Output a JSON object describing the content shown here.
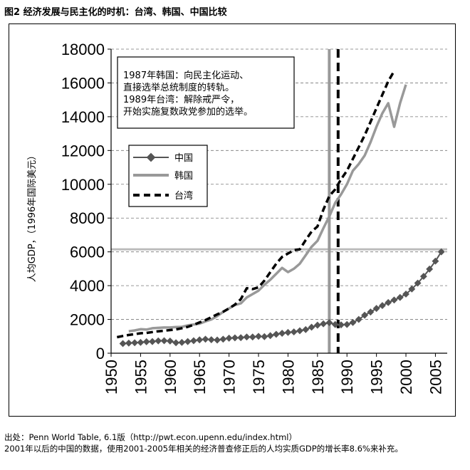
{
  "figure": {
    "title": "图2 经济发展与民主化的时机：台湾、韩国、中国比较"
  },
  "source": {
    "line1": "出处：Penn World Table, 6.1版（http://pwt.econ.upenn.edu/index.html）",
    "line2": "2001年以后的中国的数据，使用2001-2005年相关的经济普查修正后的人均实质GDP的增长率8.6%来补充。"
  },
  "chart_data": {
    "type": "line",
    "title": "",
    "xlabel": "",
    "ylabel": "人均GDP，（1996年国际美元）",
    "xlim": [
      1950,
      2007
    ],
    "ylim": [
      0,
      18000
    ],
    "x_ticks": [
      1950,
      1955,
      1960,
      1965,
      1970,
      1975,
      1980,
      1985,
      1990,
      1995,
      2000,
      2005
    ],
    "y_ticks": [
      0,
      2000,
      4000,
      6000,
      8000,
      10000,
      12000,
      14000,
      16000,
      18000
    ],
    "grid": "horizontal dashed",
    "legend_position": "left-middle",
    "colors": {
      "china": "#555555",
      "korea": "#999999",
      "taiwan": "#000000",
      "threshold": "#bbbbbb"
    },
    "series": [
      {
        "name": "中国",
        "key": "china",
        "x": [
          1952,
          1953,
          1954,
          1955,
          1956,
          1957,
          1958,
          1959,
          1960,
          1961,
          1962,
          1963,
          1964,
          1965,
          1966,
          1967,
          1968,
          1969,
          1970,
          1971,
          1972,
          1973,
          1974,
          1975,
          1976,
          1977,
          1978,
          1979,
          1980,
          1981,
          1982,
          1983,
          1984,
          1985,
          1986,
          1987,
          1988,
          1989,
          1990,
          1991,
          1992,
          1993,
          1994,
          1995,
          1996,
          1997,
          1998,
          1999,
          2000,
          2001,
          2002,
          2003,
          2004,
          2005,
          2006
        ],
        "values": [
          570,
          600,
          620,
          640,
          680,
          690,
          730,
          740,
          720,
          620,
          640,
          690,
          740,
          790,
          830,
          800,
          780,
          830,
          890,
          910,
          920,
          960,
          960,
          1000,
          980,
          1040,
          1120,
          1180,
          1230,
          1260,
          1330,
          1400,
          1540,
          1660,
          1740,
          1810,
          1700,
          1680,
          1700,
          1820,
          2000,
          2250,
          2440,
          2650,
          2820,
          3000,
          3150,
          3300,
          3500,
          3800,
          4150,
          4550,
          4980,
          5450,
          6000
        ]
      },
      {
        "name": "韩国",
        "key": "korea",
        "x": [
          1953,
          1954,
          1955,
          1956,
          1957,
          1958,
          1959,
          1960,
          1961,
          1962,
          1963,
          1964,
          1965,
          1966,
          1967,
          1968,
          1969,
          1970,
          1971,
          1972,
          1973,
          1974,
          1975,
          1976,
          1977,
          1978,
          1979,
          1980,
          1981,
          1982,
          1983,
          1984,
          1985,
          1986,
          1987,
          1988,
          1989,
          1990,
          1991,
          1992,
          1993,
          1994,
          1995,
          1996,
          1997,
          1998,
          1999,
          2000
        ],
        "values": [
          1300,
          1350,
          1420,
          1400,
          1480,
          1500,
          1520,
          1520,
          1550,
          1560,
          1650,
          1700,
          1750,
          1880,
          2000,
          2200,
          2450,
          2650,
          2850,
          2950,
          3300,
          3500,
          3700,
          4050,
          4350,
          4700,
          5050,
          4800,
          5000,
          5300,
          5800,
          6300,
          6650,
          7400,
          8100,
          8900,
          9400,
          10000,
          10800,
          11200,
          11700,
          12500,
          13400,
          14200,
          14800,
          13400,
          14800,
          15900
        ]
      },
      {
        "name": "台湾",
        "key": "taiwan",
        "x": [
          1951,
          1952,
          1953,
          1954,
          1955,
          1956,
          1957,
          1958,
          1959,
          1960,
          1961,
          1962,
          1963,
          1964,
          1965,
          1966,
          1967,
          1968,
          1969,
          1970,
          1971,
          1972,
          1973,
          1974,
          1975,
          1976,
          1977,
          1978,
          1979,
          1980,
          1981,
          1982,
          1983,
          1984,
          1985,
          1986,
          1987,
          1988,
          1989,
          1990,
          1991,
          1992,
          1993,
          1994,
          1995,
          1996,
          1997,
          1998
        ],
        "values": [
          950,
          1020,
          1080,
          1130,
          1180,
          1200,
          1250,
          1300,
          1330,
          1370,
          1410,
          1480,
          1560,
          1680,
          1820,
          1960,
          2130,
          2300,
          2450,
          2650,
          2880,
          3200,
          3850,
          3800,
          3900,
          4300,
          4800,
          5300,
          5700,
          5900,
          6100,
          6150,
          6700,
          7200,
          7500,
          8500,
          9300,
          9700,
          10300,
          10800,
          11500,
          12200,
          12900,
          13700,
          14500,
          15300,
          16100,
          16700
        ]
      }
    ],
    "vlines": [
      {
        "key": "korea",
        "x": 1987,
        "color": "#999999",
        "style": "solid"
      },
      {
        "key": "taiwan",
        "x": 1988.5,
        "color": "#000000",
        "style": "dashed"
      }
    ],
    "hline": {
      "y": 6150,
      "color": "#bbbbbb"
    },
    "annotation": {
      "lines": [
        "1987年韩国：向民主化运动、",
        "直接选举总统制度的转轨。",
        "1989年台湾：解除戒严令，",
        "开始实施复数政党参加的选举。"
      ]
    }
  }
}
